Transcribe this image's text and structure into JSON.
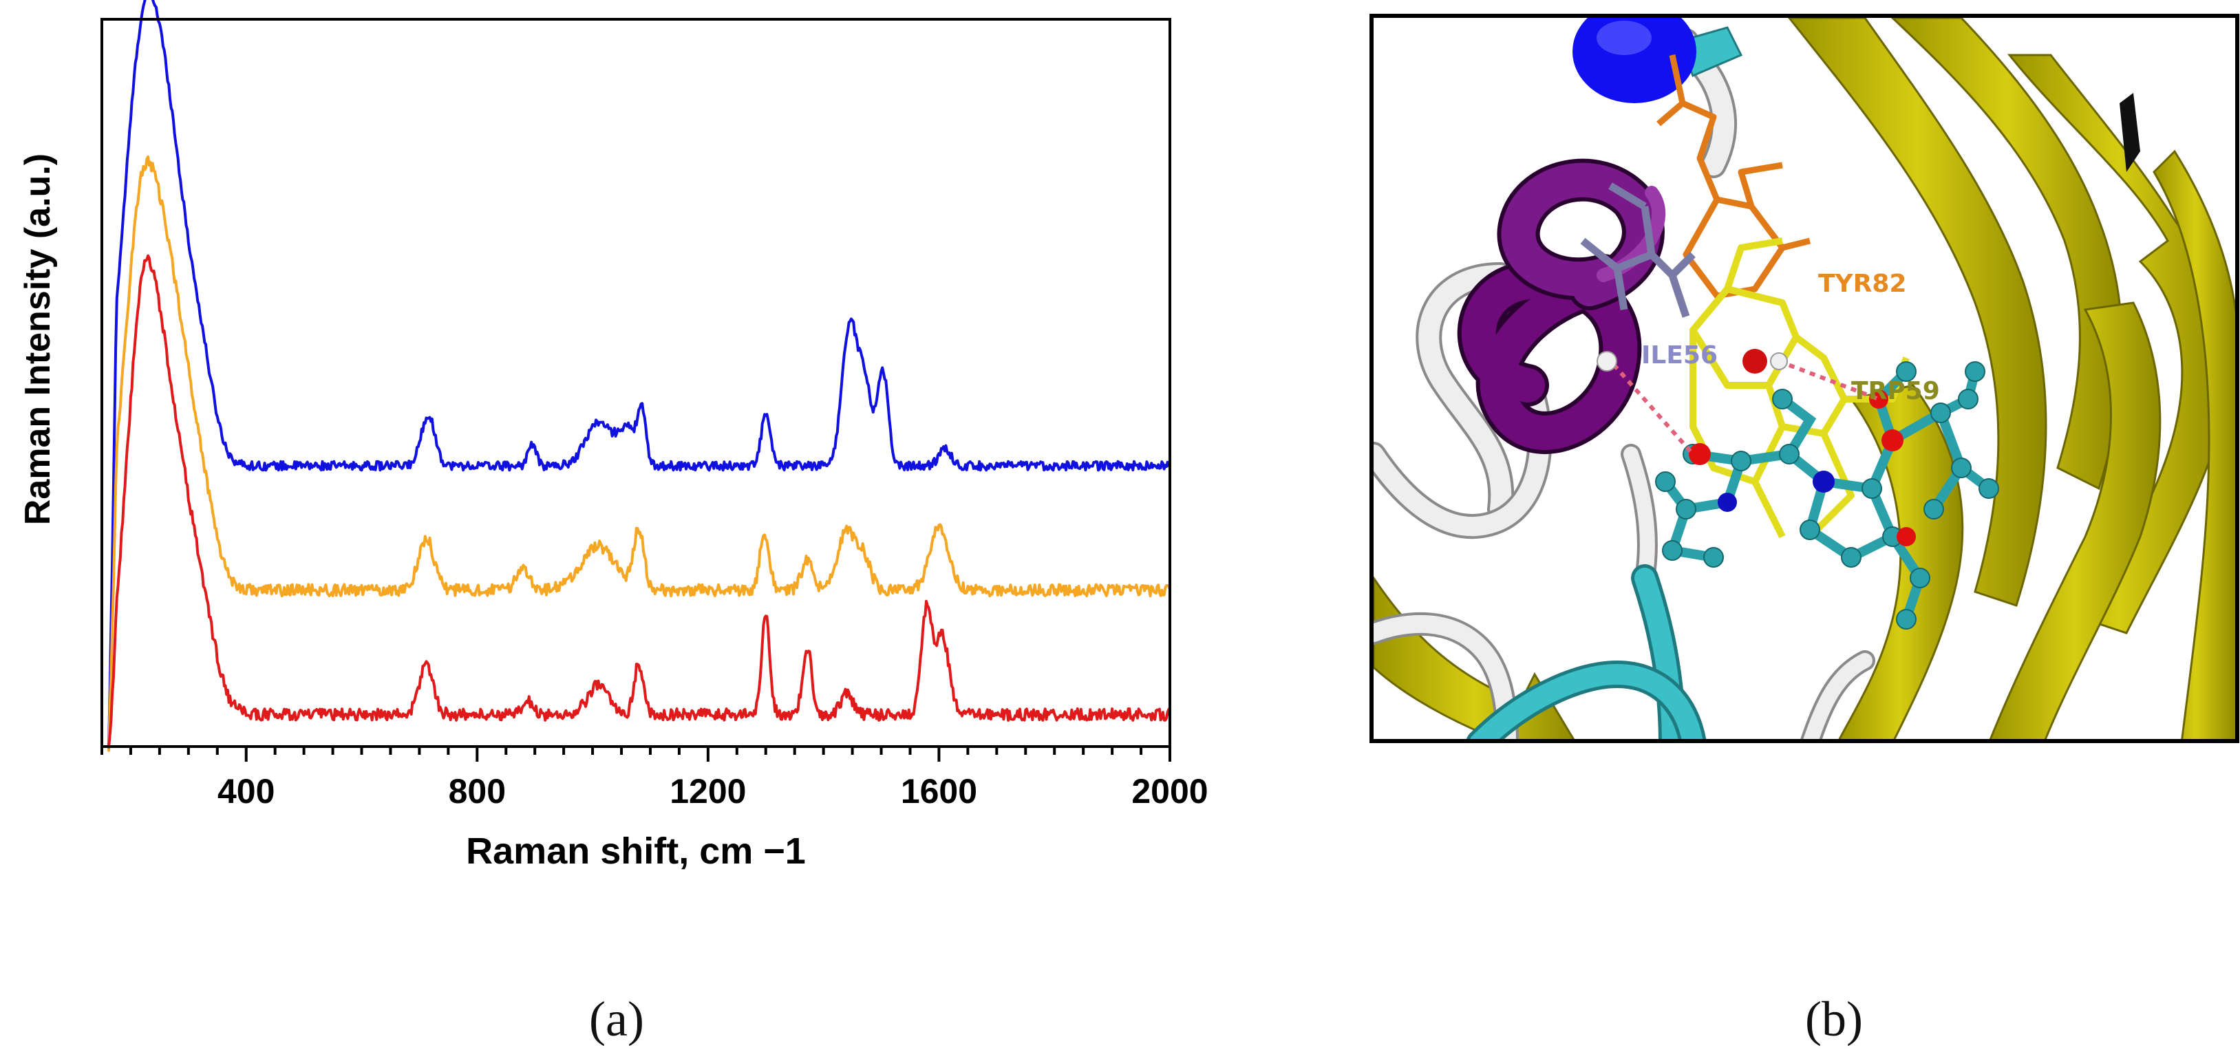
{
  "panels": {
    "a_label": "(a)",
    "b_label": "(b)"
  },
  "chart_data": {
    "type": "line",
    "title": "",
    "xlabel": "Raman shift, cm −1",
    "ylabel": "Raman Intensity (a.u.)",
    "xlim": [
      150,
      2000
    ],
    "ylim": [
      0,
      1
    ],
    "x_major_ticks": [
      400,
      800,
      1200,
      1600,
      2000
    ],
    "x_minor_step": 50,
    "y_ticks": "none",
    "grid": false,
    "legend": "none",
    "series": [
      {
        "color": "#1010e0",
        "baseline": 0.386,
        "noise": 0.006,
        "peaks": [
          {
            "x": 215,
            "h": 0.43,
            "w": 32
          },
          {
            "x": 265,
            "h": 0.4,
            "w": 38
          },
          {
            "x": 325,
            "h": 0.07,
            "w": 22
          },
          {
            "x": 715,
            "h": 0.07,
            "w": 12
          },
          {
            "x": 895,
            "h": 0.03,
            "w": 7
          },
          {
            "x": 1010,
            "h": 0.06,
            "w": 22
          },
          {
            "x": 1060,
            "h": 0.05,
            "w": 16
          },
          {
            "x": 1085,
            "h": 0.07,
            "w": 7
          },
          {
            "x": 1300,
            "h": 0.07,
            "w": 8
          },
          {
            "x": 1445,
            "h": 0.19,
            "w": 13
          },
          {
            "x": 1472,
            "h": 0.11,
            "w": 12
          },
          {
            "x": 1503,
            "h": 0.13,
            "w": 9
          },
          {
            "x": 1610,
            "h": 0.025,
            "w": 10
          }
        ]
      },
      {
        "color": "#f5a623",
        "baseline": 0.215,
        "noise": 0.008,
        "peaks": [
          {
            "x": 215,
            "h": 0.42,
            "w": 30
          },
          {
            "x": 270,
            "h": 0.38,
            "w": 38
          },
          {
            "x": 330,
            "h": 0.05,
            "w": 22
          },
          {
            "x": 712,
            "h": 0.07,
            "w": 14
          },
          {
            "x": 880,
            "h": 0.03,
            "w": 12
          },
          {
            "x": 1010,
            "h": 0.06,
            "w": 30
          },
          {
            "x": 1080,
            "h": 0.08,
            "w": 9
          },
          {
            "x": 1298,
            "h": 0.08,
            "w": 8
          },
          {
            "x": 1372,
            "h": 0.04,
            "w": 10
          },
          {
            "x": 1440,
            "h": 0.08,
            "w": 16
          },
          {
            "x": 1470,
            "h": 0.04,
            "w": 12
          },
          {
            "x": 1600,
            "h": 0.09,
            "w": 16
          }
        ]
      },
      {
        "color": "#e01a1a",
        "baseline": 0.044,
        "noise": 0.008,
        "peaks": [
          {
            "x": 218,
            "h": 0.42,
            "w": 28
          },
          {
            "x": 268,
            "h": 0.38,
            "w": 40
          },
          {
            "x": 330,
            "h": 0.05,
            "w": 22
          },
          {
            "x": 712,
            "h": 0.07,
            "w": 12
          },
          {
            "x": 888,
            "h": 0.02,
            "w": 8
          },
          {
            "x": 1010,
            "h": 0.04,
            "w": 18
          },
          {
            "x": 1080,
            "h": 0.07,
            "w": 8
          },
          {
            "x": 1300,
            "h": 0.14,
            "w": 7
          },
          {
            "x": 1372,
            "h": 0.09,
            "w": 8
          },
          {
            "x": 1440,
            "h": 0.03,
            "w": 10
          },
          {
            "x": 1578,
            "h": 0.14,
            "w": 9
          },
          {
            "x": 1605,
            "h": 0.11,
            "w": 12
          }
        ]
      }
    ]
  },
  "molecule_view": {
    "residue_labels": [
      {
        "text": "TYR82",
        "color": "#e68a1f"
      },
      {
        "text": "ILE56",
        "color": "#8a8ac8"
      },
      {
        "text": "TRP59",
        "color": "#8a8a1e"
      }
    ],
    "colors": {
      "sheet": "#c8c000",
      "helix": "#6a0a78",
      "coil": "#e6e6e6",
      "turn": "#3cb8c0",
      "ligand": "#33aaaa",
      "blue": "#1010f0"
    }
  }
}
